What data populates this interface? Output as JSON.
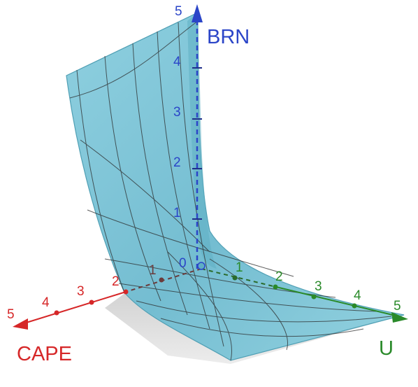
{
  "chart_data": {
    "type": "surface",
    "description_free": true,
    "axes": {
      "x": {
        "label": "CAPE",
        "ticks": [
          "1",
          "2",
          "3",
          "4",
          "5"
        ],
        "range": [
          0,
          5
        ]
      },
      "y": {
        "label": "U",
        "ticks": [
          "1",
          "2",
          "3",
          "4",
          "5"
        ],
        "range": [
          0,
          5
        ]
      },
      "z": {
        "label": "BRN",
        "ticks": [
          "0",
          "1",
          "2",
          "3",
          "4",
          "5"
        ],
        "range": [
          0,
          5
        ]
      }
    },
    "colors": {
      "x_axis": "#d62728",
      "y_axis": "#2a8a2a",
      "z_axis": "#2b45c8",
      "surface": "#7cc4d6",
      "surface_edge": "#4f9fb4",
      "mesh": "#2b2b2b",
      "shadow": "#c9c9c9"
    }
  }
}
